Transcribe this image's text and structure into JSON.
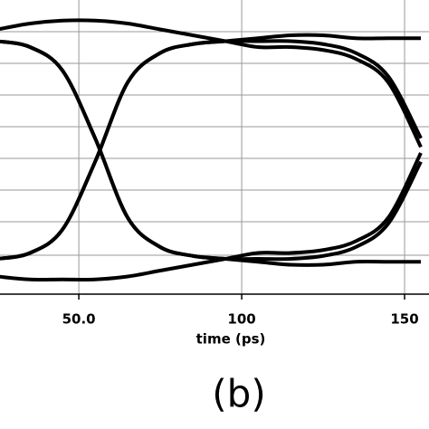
{
  "chart_data": {
    "type": "line",
    "x_label": "time (ps)",
    "panel_label": "(b)",
    "x": [
      25,
      35,
      45,
      55,
      65,
      75,
      85,
      95,
      105,
      115,
      125,
      135,
      145,
      155
    ],
    "series": [
      {
        "color": "#000000",
        "values": [
          0.12,
          0.14,
          0.22,
          0.45,
          0.72,
          0.82,
          0.85,
          0.86,
          0.86,
          0.86,
          0.85,
          0.82,
          0.74,
          0.53
        ]
      },
      {
        "color": "#000000",
        "values": [
          0.86,
          0.84,
          0.76,
          0.53,
          0.26,
          0.16,
          0.13,
          0.12,
          0.12,
          0.12,
          0.13,
          0.16,
          0.24,
          0.45
        ]
      },
      {
        "color": "#000000",
        "values": [
          0.12,
          0.14,
          0.22,
          0.45,
          0.72,
          0.82,
          0.85,
          0.86,
          0.87,
          0.88,
          0.88,
          0.87,
          0.87,
          0.87
        ]
      },
      {
        "color": "#000000",
        "values": [
          0.86,
          0.84,
          0.76,
          0.53,
          0.26,
          0.16,
          0.13,
          0.12,
          0.11,
          0.1,
          0.1,
          0.11,
          0.11,
          0.11
        ]
      },
      {
        "color": "#000000",
        "values": [
          0.9,
          0.92,
          0.93,
          0.93,
          0.92,
          0.9,
          0.88,
          0.86,
          0.84,
          0.84,
          0.83,
          0.8,
          0.72,
          0.5
        ]
      },
      {
        "color": "#000000",
        "values": [
          0.06,
          0.05,
          0.05,
          0.05,
          0.06,
          0.08,
          0.1,
          0.12,
          0.14,
          0.14,
          0.15,
          0.18,
          0.26,
          0.48
        ]
      }
    ],
    "xlim": [
      25.8,
      157.5
    ],
    "ylim": [
      0,
      1
    ],
    "xticks": [
      {
        "value": 50,
        "label": "50.0"
      },
      100,
      150
    ],
    "grid": true
  }
}
